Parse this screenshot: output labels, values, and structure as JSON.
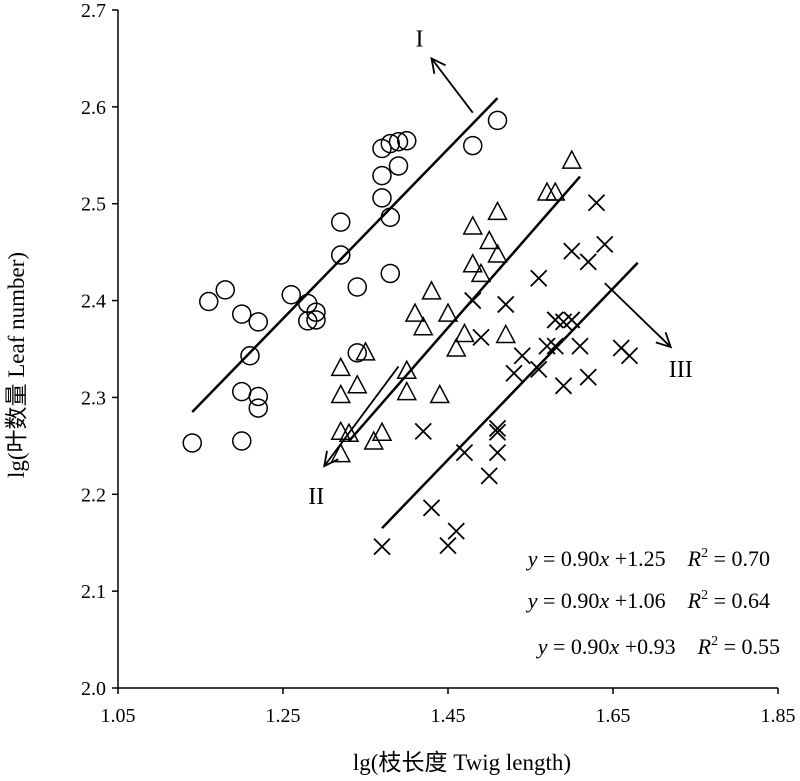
{
  "chart_data": {
    "type": "scatter",
    "title": "",
    "xlabel": "lg(枝长度 Twig length)",
    "ylabel": "lg(叶数量 Leaf number)",
    "xlim": [
      1.05,
      1.85
    ],
    "ylim": [
      2.0,
      2.7
    ],
    "xticks": [
      "1.05",
      "1.25",
      "1.45",
      "1.65",
      "1.85"
    ],
    "yticks": [
      "2.0",
      "2.1",
      "2.2",
      "2.3",
      "2.4",
      "2.5",
      "2.6",
      "2.7"
    ],
    "grid": false,
    "series": [
      {
        "name": "I",
        "marker": "circle",
        "points": [
          [
            1.14,
            2.253
          ],
          [
            1.16,
            2.399
          ],
          [
            1.18,
            2.411
          ],
          [
            1.2,
            2.386
          ],
          [
            1.21,
            2.343
          ],
          [
            1.2,
            2.306
          ],
          [
            1.2,
            2.255
          ],
          [
            1.22,
            2.378
          ],
          [
            1.22,
            2.301
          ],
          [
            1.22,
            2.289
          ],
          [
            1.26,
            2.406
          ],
          [
            1.28,
            2.397
          ],
          [
            1.28,
            2.379
          ],
          [
            1.29,
            2.38
          ],
          [
            1.29,
            2.388
          ],
          [
            1.32,
            2.481
          ],
          [
            1.32,
            2.447
          ],
          [
            1.34,
            2.414
          ],
          [
            1.34,
            2.346
          ],
          [
            1.37,
            2.557
          ],
          [
            1.37,
            2.529
          ],
          [
            1.37,
            2.506
          ],
          [
            1.38,
            2.486
          ],
          [
            1.38,
            2.428
          ],
          [
            1.38,
            2.562
          ],
          [
            1.39,
            2.539
          ],
          [
            1.39,
            2.564
          ],
          [
            1.4,
            2.565
          ],
          [
            1.48,
            2.56
          ],
          [
            1.51,
            2.586
          ]
        ]
      },
      {
        "name": "II",
        "marker": "triangle",
        "points": [
          [
            1.32,
            2.33
          ],
          [
            1.32,
            2.302
          ],
          [
            1.32,
            2.264
          ],
          [
            1.32,
            2.241
          ],
          [
            1.33,
            2.262
          ],
          [
            1.34,
            2.312
          ],
          [
            1.35,
            2.346
          ],
          [
            1.36,
            2.254
          ],
          [
            1.37,
            2.263
          ],
          [
            1.4,
            2.305
          ],
          [
            1.4,
            2.327
          ],
          [
            1.41,
            2.386
          ],
          [
            1.42,
            2.372
          ],
          [
            1.43,
            2.409
          ],
          [
            1.44,
            2.302
          ],
          [
            1.45,
            2.386
          ],
          [
            1.46,
            2.35
          ],
          [
            1.47,
            2.365
          ],
          [
            1.48,
            2.437
          ],
          [
            1.48,
            2.476
          ],
          [
            1.49,
            2.427
          ],
          [
            1.5,
            2.461
          ],
          [
            1.51,
            2.491
          ],
          [
            1.51,
            2.447
          ],
          [
            1.52,
            2.364
          ],
          [
            1.57,
            2.511
          ],
          [
            1.58,
            2.511
          ],
          [
            1.6,
            2.544
          ]
        ]
      },
      {
        "name": "III",
        "marker": "cross",
        "points": [
          [
            1.37,
            2.146
          ],
          [
            1.42,
            2.265
          ],
          [
            1.43,
            2.186
          ],
          [
            1.45,
            2.147
          ],
          [
            1.46,
            2.162
          ],
          [
            1.47,
            2.243
          ],
          [
            1.48,
            2.4
          ],
          [
            1.49,
            2.362
          ],
          [
            1.5,
            2.219
          ],
          [
            1.51,
            2.268
          ],
          [
            1.51,
            2.264
          ],
          [
            1.51,
            2.243
          ],
          [
            1.52,
            2.396
          ],
          [
            1.53,
            2.325
          ],
          [
            1.54,
            2.343
          ],
          [
            1.56,
            2.329
          ],
          [
            1.56,
            2.423
          ],
          [
            1.57,
            2.353
          ],
          [
            1.58,
            2.38
          ],
          [
            1.58,
            2.353
          ],
          [
            1.59,
            2.312
          ],
          [
            1.59,
            2.378
          ],
          [
            1.6,
            2.38
          ],
          [
            1.6,
            2.451
          ],
          [
            1.61,
            2.353
          ],
          [
            1.62,
            2.321
          ],
          [
            1.62,
            2.44
          ],
          [
            1.63,
            2.501
          ],
          [
            1.64,
            2.458
          ],
          [
            1.66,
            2.351
          ],
          [
            1.67,
            2.343
          ]
        ]
      }
    ],
    "fit_lines": [
      {
        "name": "I",
        "x": [
          1.14,
          1.51
        ],
        "y": [
          2.285,
          2.609
        ]
      },
      {
        "name": "II",
        "x": [
          1.33,
          1.61
        ],
        "y": [
          2.255,
          2.528
        ]
      },
      {
        "name": "III",
        "x": [
          1.37,
          1.68
        ],
        "y": [
          2.165,
          2.439
        ]
      }
    ],
    "annotations": [
      {
        "label": "I",
        "arrow_from": [
          1.48,
          2.594
        ],
        "arrow_to": [
          1.43,
          2.65
        ]
      },
      {
        "label": "II",
        "arrow_from": [
          1.39,
          2.332
        ],
        "arrow_to": [
          1.3,
          2.229
        ]
      },
      {
        "label": "III",
        "arrow_from": [
          1.64,
          2.418
        ],
        "arrow_to": [
          1.72,
          2.352
        ]
      }
    ],
    "equations": [
      {
        "y_text": "y",
        "mid": " = 0.90",
        "x_text": "x",
        "rest": " +1.25",
        "r_text": "R",
        "r_sup": "2",
        "r_value": " = 0.70"
      },
      {
        "y_text": "y",
        "mid": " = 0.90",
        "x_text": "x",
        "rest": " +1.06",
        "r_text": "R",
        "r_sup": "2",
        "r_value": " = 0.64"
      },
      {
        "y_text": "y",
        "mid": " = 0.90",
        "x_text": "x",
        "rest": " +0.93",
        "r_text": "R",
        "r_sup": "2",
        "r_value": " = 0.55"
      }
    ]
  }
}
